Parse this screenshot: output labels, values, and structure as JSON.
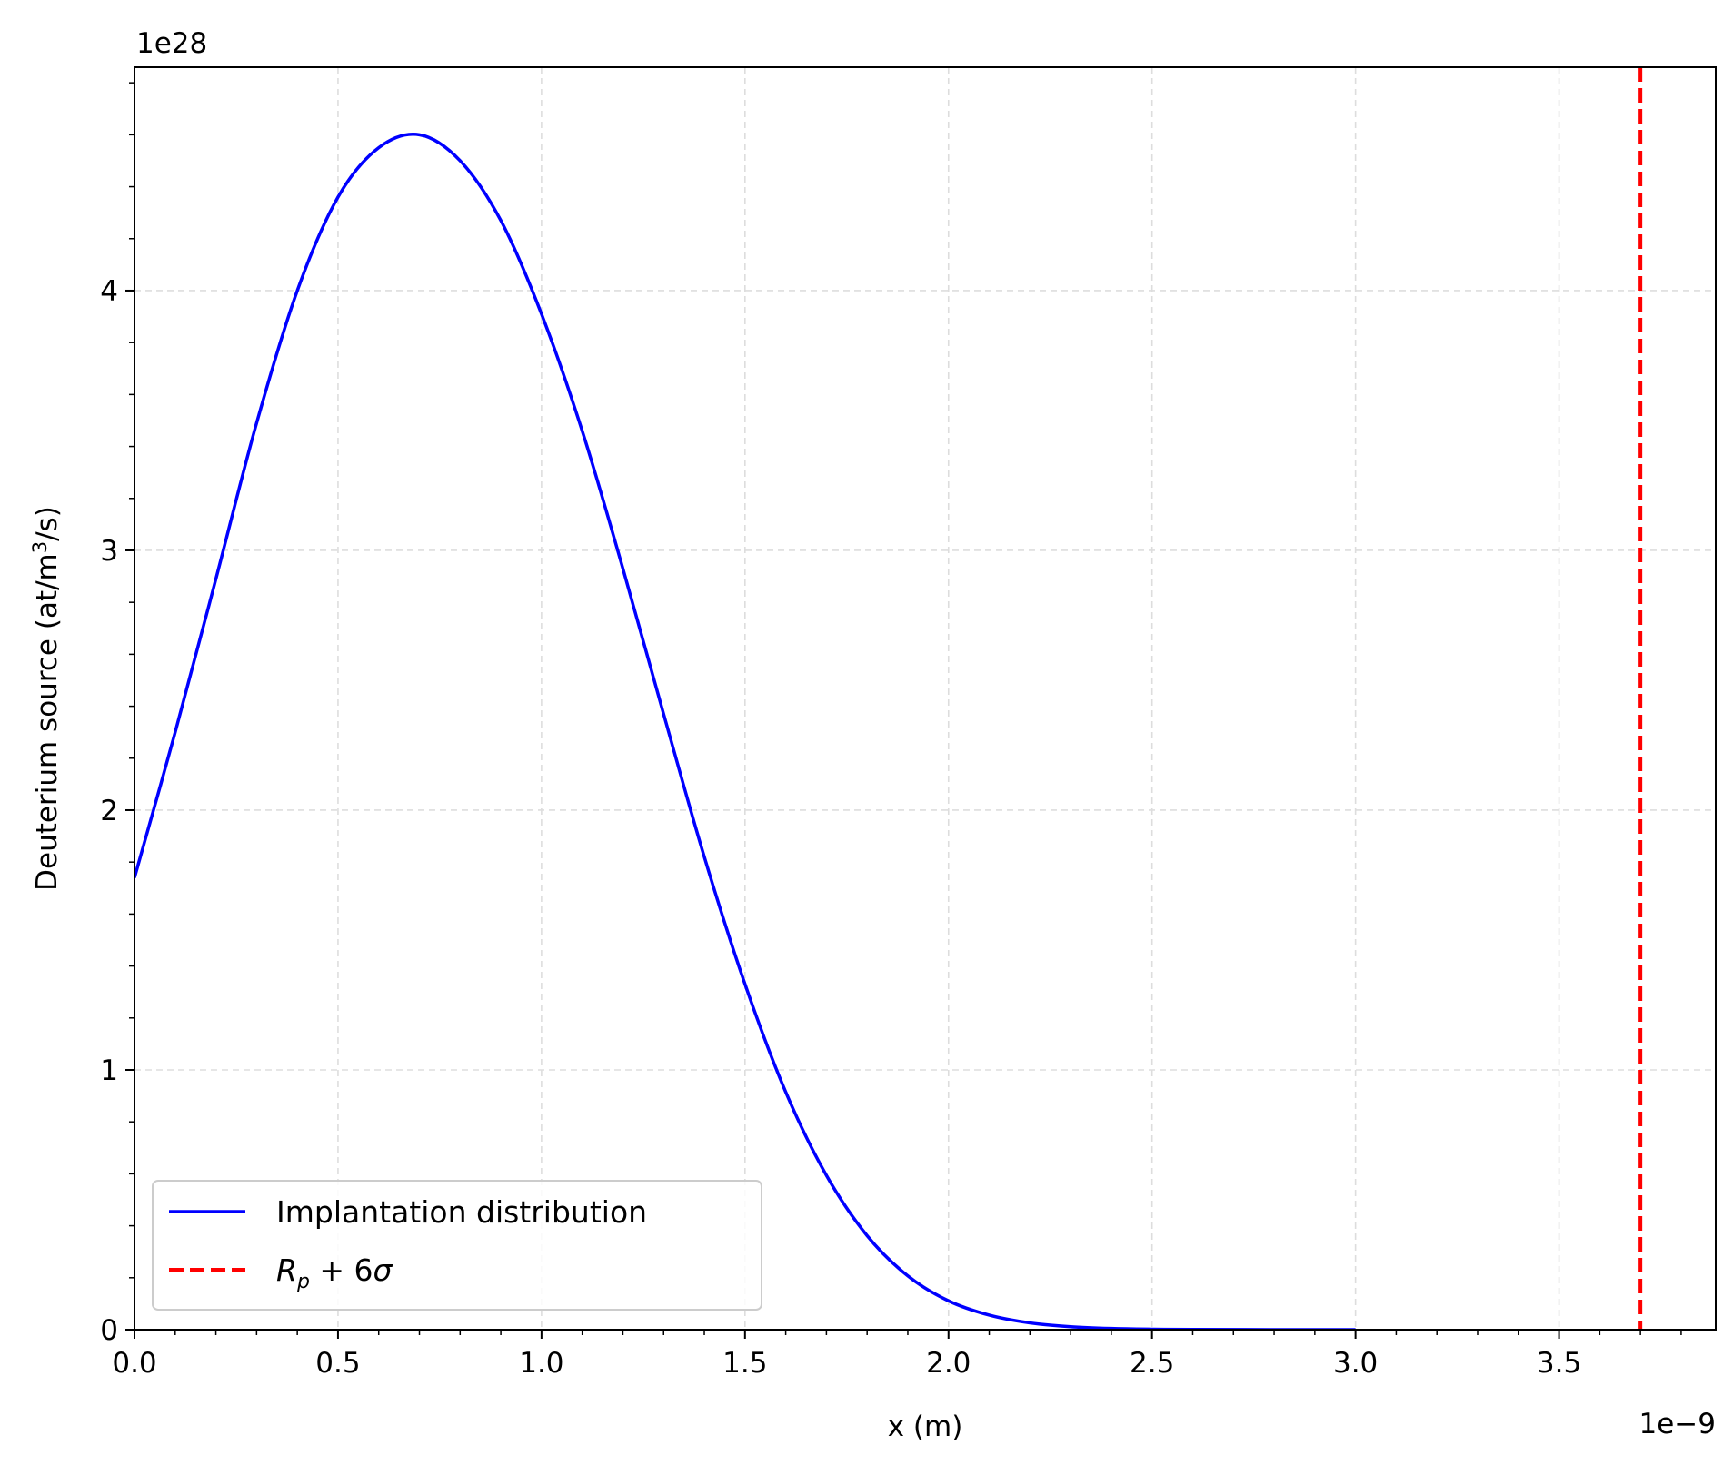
{
  "chart_data": {
    "type": "line",
    "xlabel": "x (m)",
    "ylabel": "Deuterium source (at/m³/s)",
    "x_offset_text": "1e−9",
    "y_offset_text": "1e28",
    "x_scale": 1e-09,
    "y_scale": 1e+28,
    "xlim": [
      0.0,
      3.885
    ],
    "ylim": [
      0,
      4.86
    ],
    "x_ticks": [
      0.0,
      0.5,
      1.0,
      1.5,
      2.0,
      2.5,
      3.0,
      3.5
    ],
    "x_tick_labels": [
      "0.0",
      "0.5",
      "1.0",
      "1.5",
      "2.0",
      "2.5",
      "3.0",
      "3.5"
    ],
    "y_ticks": [
      0,
      1,
      2,
      3,
      4
    ],
    "y_tick_labels": [
      "0",
      "1",
      "2",
      "3",
      "4"
    ],
    "grid": true,
    "grid_style": "dashed",
    "legend_position": "lower-left",
    "series": [
      {
        "name": "Implantation distribution",
        "color": "#0000ff",
        "style": "solid",
        "x": [
          0.0,
          0.1,
          0.2,
          0.3,
          0.4,
          0.5,
          0.6,
          0.7,
          0.8,
          0.9,
          1.0,
          1.1,
          1.2,
          1.3,
          1.4,
          1.5,
          1.6,
          1.7,
          1.8,
          1.9,
          2.0,
          2.1,
          2.2,
          2.3,
          2.4,
          2.5,
          2.6,
          2.8,
          3.0
        ],
        "y": [
          1.74,
          2.3,
          2.89,
          3.49,
          4.0,
          4.36,
          4.55,
          4.6,
          4.5,
          4.27,
          3.91,
          3.46,
          2.93,
          2.37,
          1.82,
          1.33,
          0.915,
          0.594,
          0.362,
          0.207,
          0.111,
          0.056,
          0.026,
          0.0115,
          0.0047,
          0.0018,
          0.00065,
          0.0001,
          0.0
        ]
      },
      {
        "name": "$R_p + 6\\sigma$",
        "color": "#ff0000",
        "style": "dashed",
        "vertical_line_x": 3.7
      }
    ]
  }
}
